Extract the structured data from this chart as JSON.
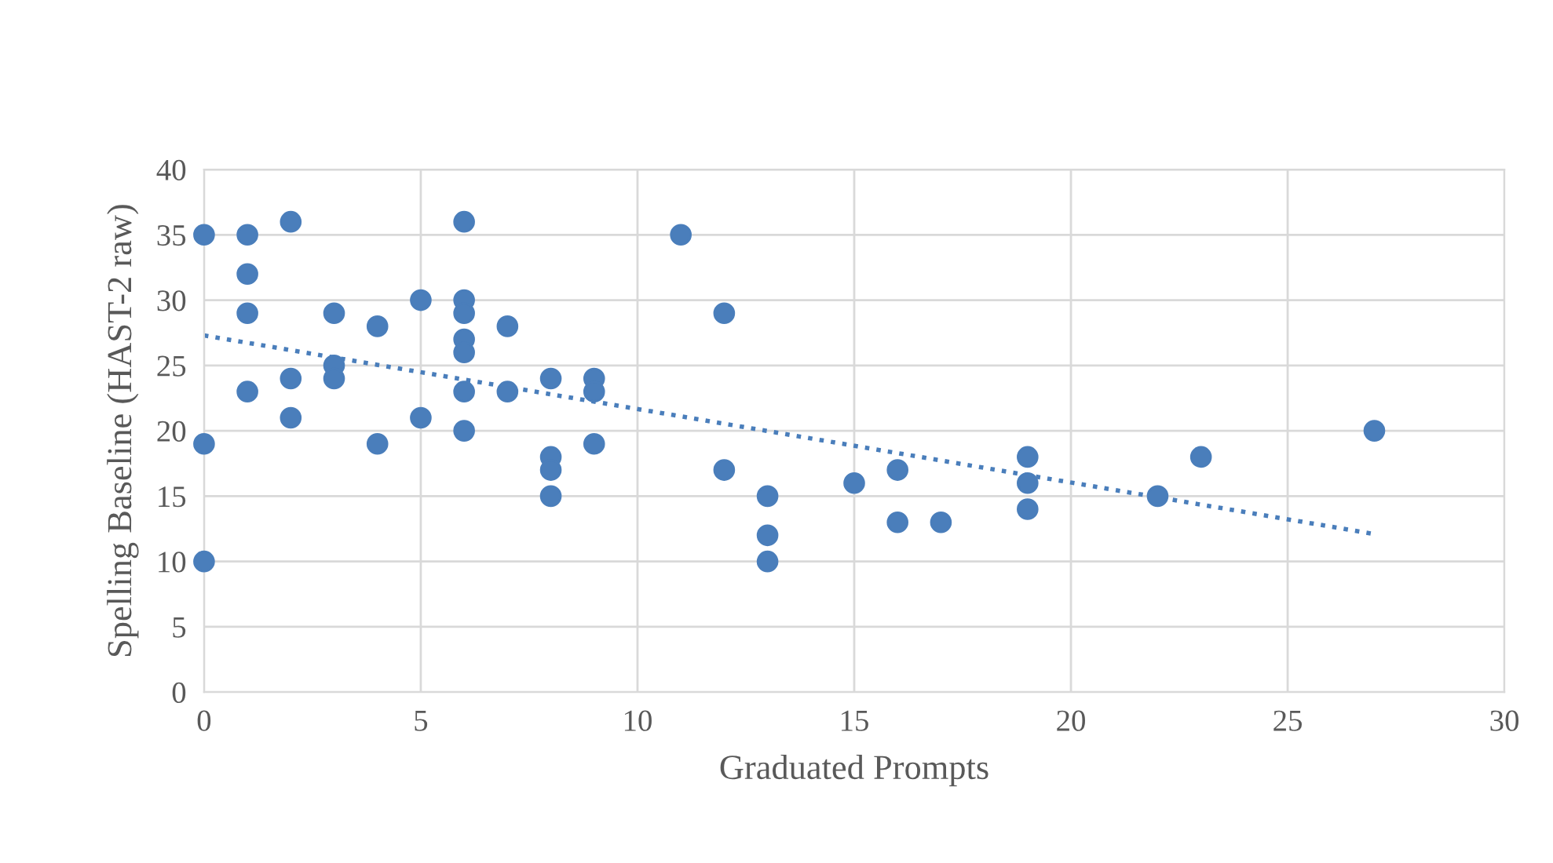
{
  "chart_data": {
    "type": "scatter",
    "xlabel": "Graduated Prompts",
    "ylabel": "Spelling Baseline (HAST-2 raw)",
    "xlim": [
      0,
      30
    ],
    "xticks": [
      0,
      5,
      10,
      15,
      20,
      25,
      30
    ],
    "ylim": [
      0,
      40
    ],
    "yticks": [
      0,
      5,
      10,
      15,
      20,
      25,
      30,
      35,
      40
    ],
    "grid": true,
    "marker": "circle",
    "series": [
      {
        "color": "#4a7ebb",
        "x": [
          0,
          0,
          0,
          1,
          1,
          1,
          1,
          2,
          2,
          2,
          3,
          3,
          3,
          4,
          4,
          5,
          5,
          6,
          6,
          6,
          6,
          6,
          6,
          6,
          7,
          7,
          8,
          8,
          8,
          8,
          9,
          9,
          9,
          11,
          12,
          12,
          13,
          13,
          13,
          15,
          16,
          16,
          17,
          19,
          19,
          19,
          22,
          23,
          27
        ],
        "values": [
          35,
          19,
          10,
          35,
          32,
          29,
          23,
          36,
          24,
          21,
          29,
          25,
          24,
          28,
          19,
          30,
          21,
          36,
          30,
          29,
          27,
          26,
          23,
          20,
          28,
          23,
          24,
          18,
          17,
          15,
          24,
          23,
          19,
          35,
          29,
          17,
          15,
          12,
          10,
          16,
          17,
          13,
          13,
          18,
          16,
          14,
          15,
          18,
          20
        ]
      },
      {
        "type": "line",
        "color": "#4a7ebb",
        "line_style": "dotted",
        "marker": "none",
        "x": [
          0,
          27
        ],
        "values": [
          27.3,
          12.1
        ]
      }
    ]
  }
}
